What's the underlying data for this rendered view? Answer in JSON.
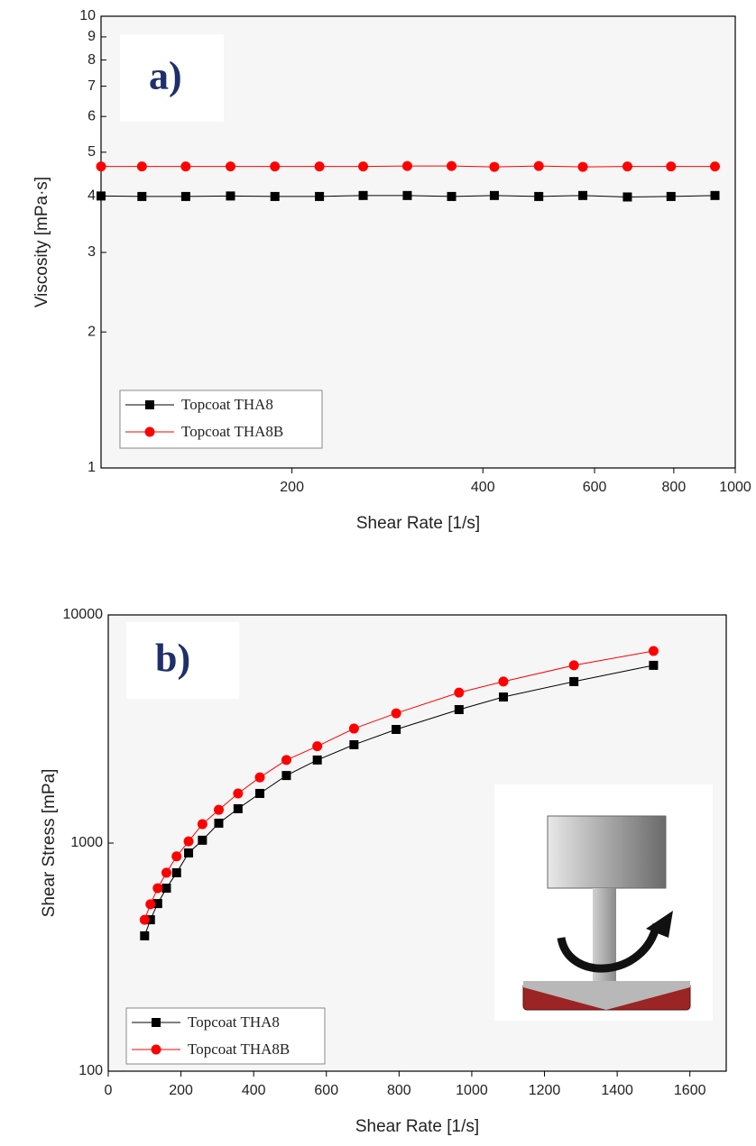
{
  "chart_data": [
    {
      "type": "line",
      "label": "a)",
      "xlabel": "Shear Rate [1/s]",
      "ylabel": "Viscosity [mPa·s]",
      "xscale": "log",
      "yscale": "log",
      "xlim": [
        100,
        1000
      ],
      "ylim": [
        1,
        10
      ],
      "xticks": [
        200,
        400,
        600,
        800,
        1000
      ],
      "yticks": [
        1,
        2,
        3,
        4,
        5,
        6,
        7,
        8,
        9,
        10
      ],
      "legend": "lower left",
      "x": [
        100,
        116,
        136,
        160,
        188,
        221,
        259,
        304,
        357,
        417,
        490,
        575,
        676,
        792,
        929
      ],
      "series": [
        {
          "name": "Topcoat THA8",
          "color": "#000000",
          "marker": "square",
          "values": [
            4.0,
            3.99,
            3.99,
            4.0,
            3.99,
            3.99,
            4.01,
            4.01,
            3.99,
            4.01,
            3.99,
            4.01,
            3.98,
            3.99,
            4.01
          ]
        },
        {
          "name": "Topcoat THA8B",
          "color": "#ff0000",
          "marker": "circle",
          "values": [
            4.65,
            4.65,
            4.65,
            4.65,
            4.65,
            4.65,
            4.65,
            4.66,
            4.66,
            4.64,
            4.66,
            4.64,
            4.65,
            4.65,
            4.65
          ]
        }
      ]
    },
    {
      "type": "line",
      "label": "b)",
      "xlabel": "Shear Rate [1/s]",
      "ylabel": "Shear Stress [mPa]",
      "xscale": "linear",
      "yscale": "log",
      "xlim": [
        0,
        1700
      ],
      "ylim": [
        100,
        10000
      ],
      "xticks": [
        0,
        200,
        400,
        600,
        800,
        1000,
        1200,
        1400,
        1600
      ],
      "yticks": [
        100,
        1000,
        10000
      ],
      "legend": "lower left",
      "x": [
        100,
        116,
        136,
        160,
        188,
        221,
        259,
        304,
        357,
        417,
        490,
        575,
        676,
        792,
        965,
        1087,
        1281,
        1500
      ],
      "series": [
        {
          "name": "Topcoat THA8",
          "color": "#000000",
          "marker": "square",
          "values": [
            392,
            461,
            543,
            634,
            741,
            905,
            1029,
            1222,
            1414,
            1650,
            1977,
            2312,
            2698,
            3148,
            3846,
            4367,
            5103,
            6012
          ]
        },
        {
          "name": "Topcoat THA8B",
          "color": "#ff0000",
          "marker": "circle",
          "values": [
            461,
            539,
            634,
            741,
            874,
            1017,
            1210,
            1398,
            1650,
            1940,
            2312,
            2656,
            3175,
            3706,
            4566,
            5103,
            6012,
            6950
          ]
        }
      ]
    }
  ]
}
